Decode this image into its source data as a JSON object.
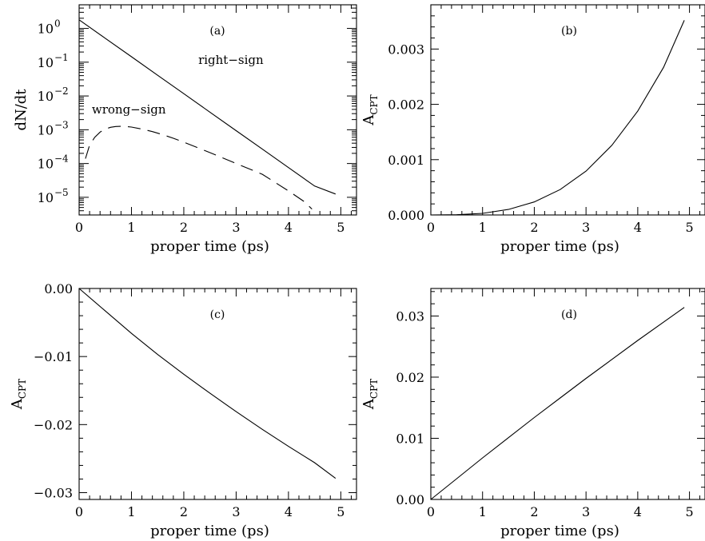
{
  "chart_data": [
    {
      "id": "a",
      "type": "line",
      "panel_label": "(a)",
      "xlabel": "proper time   (ps)",
      "ylabel": "dN/dt",
      "xlim": [
        0,
        5.3
      ],
      "yscale": "log",
      "ylim": [
        3e-06,
        5
      ],
      "xticks": [
        0,
        1,
        2,
        3,
        4,
        5
      ],
      "yticks": [
        {
          "value": 1,
          "base": "10",
          "exp": "0"
        },
        {
          "value": 0.1,
          "base": "10",
          "exp": "−1"
        },
        {
          "value": 0.01,
          "base": "10",
          "exp": "−2"
        },
        {
          "value": 0.001,
          "base": "10",
          "exp": "−3"
        },
        {
          "value": 0.0001,
          "base": "10",
          "exp": "−4"
        },
        {
          "value": 1e-05,
          "base": "10",
          "exp": "−5"
        }
      ],
      "series": [
        {
          "style": "solid",
          "x": [
            0,
            0.5,
            1,
            1.5,
            2,
            2.5,
            3,
            3.5,
            4,
            4.5,
            4.9
          ],
          "y": [
            1.8,
            0.51,
            0.145,
            0.041,
            0.0117,
            0.0033,
            0.00094,
            0.000267,
            7.6e-05,
            2.15e-05,
            1.25e-05
          ]
        },
        {
          "style": "dashed",
          "x": [
            0.12,
            0.2,
            0.3,
            0.4,
            0.5,
            0.6,
            0.7,
            0.8,
            0.9,
            1.0,
            1.2,
            1.4,
            1.6,
            1.8,
            2.0,
            2.5,
            3.0,
            3.5,
            4.0,
            4.3,
            4.45
          ],
          "y": [
            0.00014,
            0.00035,
            0.0006,
            0.00085,
            0.00105,
            0.00118,
            0.00125,
            0.00127,
            0.00125,
            0.0012,
            0.00105,
            0.00088,
            0.00071,
            0.00056,
            0.00043,
            0.00021,
            0.0001,
            4.8e-05,
            1.55e-05,
            7.5e-06,
            4.5e-06
          ]
        }
      ],
      "annotations": [
        {
          "text": "right−sign",
          "x": 2.9,
          "y": 0.09
        },
        {
          "text": "wrong−sign",
          "x": 0.95,
          "y": 0.003
        }
      ]
    },
    {
      "id": "b",
      "type": "line",
      "panel_label": "(b)",
      "xlabel": "proper time (ps)",
      "ylabel": "A",
      "ylabel_sub": "CPT",
      "xlim": [
        0,
        5.3
      ],
      "ylim": [
        0,
        0.0038
      ],
      "xticks": [
        0,
        1,
        2,
        3,
        4,
        5
      ],
      "yticks": [
        {
          "value": 0,
          "label": "0.000"
        },
        {
          "value": 0.001,
          "label": "0.001"
        },
        {
          "value": 0.002,
          "label": "0.002"
        },
        {
          "value": 0.003,
          "label": "0.003"
        }
      ],
      "series": [
        {
          "style": "solid",
          "x": [
            0,
            0.5,
            1,
            1.5,
            2,
            2.5,
            3,
            3.5,
            4,
            4.5,
            4.9
          ],
          "y": [
            0,
            4e-06,
            2.9e-05,
            9.9e-05,
            0.000235,
            0.000459,
            0.000793,
            0.00126,
            0.00188,
            0.00267,
            0.00352
          ]
        }
      ]
    },
    {
      "id": "c",
      "type": "line",
      "panel_label": "(c)",
      "xlabel": "proper time (ps)",
      "ylabel": "A",
      "ylabel_sub": "CPT",
      "xlim": [
        0,
        5.3
      ],
      "ylim": [
        -0.031,
        0
      ],
      "xticks": [
        0,
        1,
        2,
        3,
        4,
        5
      ],
      "yticks": [
        {
          "value": 0,
          "label": "0.00"
        },
        {
          "value": -0.01,
          "label": "−0.01"
        },
        {
          "value": -0.02,
          "label": "−0.02"
        },
        {
          "value": -0.03,
          "label": "−0.03"
        }
      ],
      "series": [
        {
          "style": "solid",
          "x": [
            0,
            0.5,
            1,
            1.5,
            2,
            2.5,
            3,
            3.5,
            4,
            4.5,
            4.9
          ],
          "y": [
            0,
            -0.0033,
            -0.0066,
            -0.0097,
            -0.0126,
            -0.0154,
            -0.0181,
            -0.0207,
            -0.0232,
            -0.0256,
            -0.0279
          ]
        }
      ]
    },
    {
      "id": "d",
      "type": "line",
      "panel_label": "(d)",
      "xlabel": "proper time (ps)",
      "ylabel": "A",
      "ylabel_sub": "CPT",
      "xlim": [
        0,
        5.3
      ],
      "ylim": [
        0,
        0.0345
      ],
      "xticks": [
        0,
        1,
        2,
        3,
        4,
        5
      ],
      "yticks": [
        {
          "value": 0,
          "label": "0.00"
        },
        {
          "value": 0.01,
          "label": "0.01"
        },
        {
          "value": 0.02,
          "label": "0.02"
        },
        {
          "value": 0.03,
          "label": "0.03"
        }
      ],
      "series": [
        {
          "style": "solid",
          "x": [
            0,
            0.5,
            1,
            1.5,
            2,
            2.5,
            3,
            3.5,
            4,
            4.5,
            4.9
          ],
          "y": [
            0,
            0.0034,
            0.0068,
            0.0101,
            0.0134,
            0.0166,
            0.0198,
            0.0229,
            0.026,
            0.029,
            0.0314
          ]
        }
      ]
    }
  ]
}
